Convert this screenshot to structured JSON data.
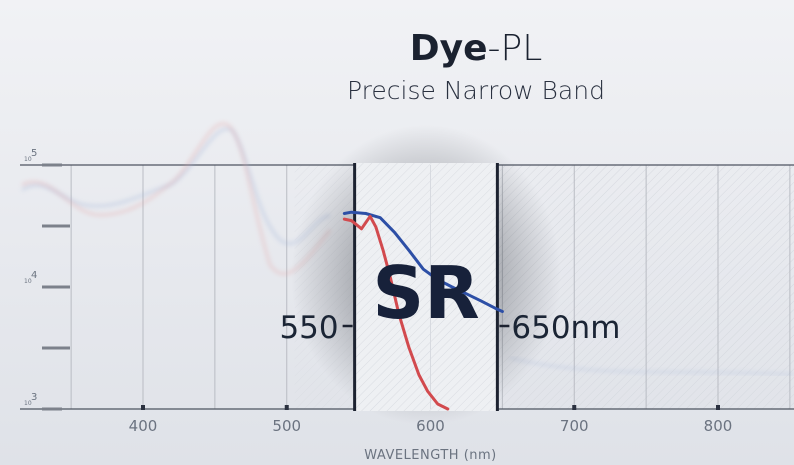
{
  "title": {
    "brand_bold": "Dye",
    "brand_rest": "-PL",
    "subtitle": "Precise Narrow Band"
  },
  "band": {
    "label": "SR",
    "lower_label": "550",
    "upper_label": "650nm",
    "lower_wavelength": 550,
    "upper_wavelength": 650
  },
  "chart_data": {
    "type": "line",
    "xlabel": "WAVELENGTH (nm)",
    "ylabel": "",
    "xlim": [
      330,
      860
    ],
    "x_ticks": [
      400,
      500,
      600,
      700,
      800
    ],
    "x_tick_labels": [
      "400",
      "500",
      "600",
      "700",
      "800"
    ],
    "y_scale": "log",
    "ylim": [
      1000,
      100000
    ],
    "y_ticks": [
      {
        "base": "10",
        "exp": "5",
        "value": 100000
      },
      {
        "base": "10",
        "exp": "4",
        "value": 10000
      },
      {
        "base": "10",
        "exp": "3",
        "value": 1000
      }
    ],
    "series": [
      {
        "color": "#2d4fa6",
        "x": [
          540,
          545,
          555,
          565,
          575,
          585,
          595,
          605,
          615,
          625,
          635,
          645,
          650
        ],
        "y": [
          40000,
          41000,
          40000,
          37000,
          28000,
          20000,
          14000,
          11500,
          10000,
          8800,
          7700,
          6700,
          6300
        ]
      },
      {
        "color": "#d24a4e",
        "x": [
          540,
          545,
          552,
          558,
          562,
          567,
          572,
          578,
          585,
          592,
          598,
          605,
          612
        ],
        "y": [
          36000,
          35000,
          30000,
          38000,
          31000,
          20000,
          12000,
          6000,
          3200,
          1900,
          1400,
          1100,
          1000
        ]
      }
    ]
  }
}
